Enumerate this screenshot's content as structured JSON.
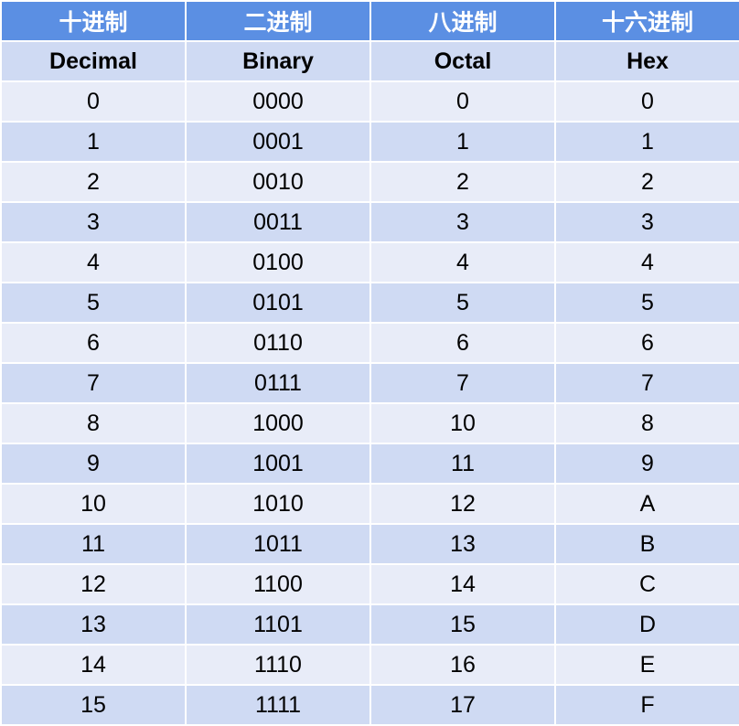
{
  "table": {
    "headers_zh": [
      "十进制",
      "二进制",
      "八进制",
      "十六进制"
    ],
    "headers_en": [
      "Decimal",
      "Binary",
      "Octal",
      "Hex"
    ],
    "rows": [
      [
        "0",
        "0000",
        "0",
        "0"
      ],
      [
        "1",
        "0001",
        "1",
        "1"
      ],
      [
        "2",
        "0010",
        "2",
        "2"
      ],
      [
        "3",
        "0011",
        "3",
        "3"
      ],
      [
        "4",
        "0100",
        "4",
        "4"
      ],
      [
        "5",
        "0101",
        "5",
        "5"
      ],
      [
        "6",
        "0110",
        "6",
        "6"
      ],
      [
        "7",
        "0111",
        "7",
        "7"
      ],
      [
        "8",
        "1000",
        "10",
        "8"
      ],
      [
        "9",
        "1001",
        "11",
        "9"
      ],
      [
        "10",
        "1010",
        "12",
        "A"
      ],
      [
        "11",
        "1011",
        "13",
        "B"
      ],
      [
        "12",
        "1100",
        "14",
        "C"
      ],
      [
        "13",
        "1101",
        "15",
        "D"
      ],
      [
        "14",
        "1110",
        "16",
        "E"
      ],
      [
        "15",
        "1111",
        "17",
        "F"
      ]
    ]
  },
  "colors": {
    "header_zh_bg": "#5b8fe3",
    "row_light": "#e8ecf8",
    "row_dark": "#cfdaf3"
  }
}
